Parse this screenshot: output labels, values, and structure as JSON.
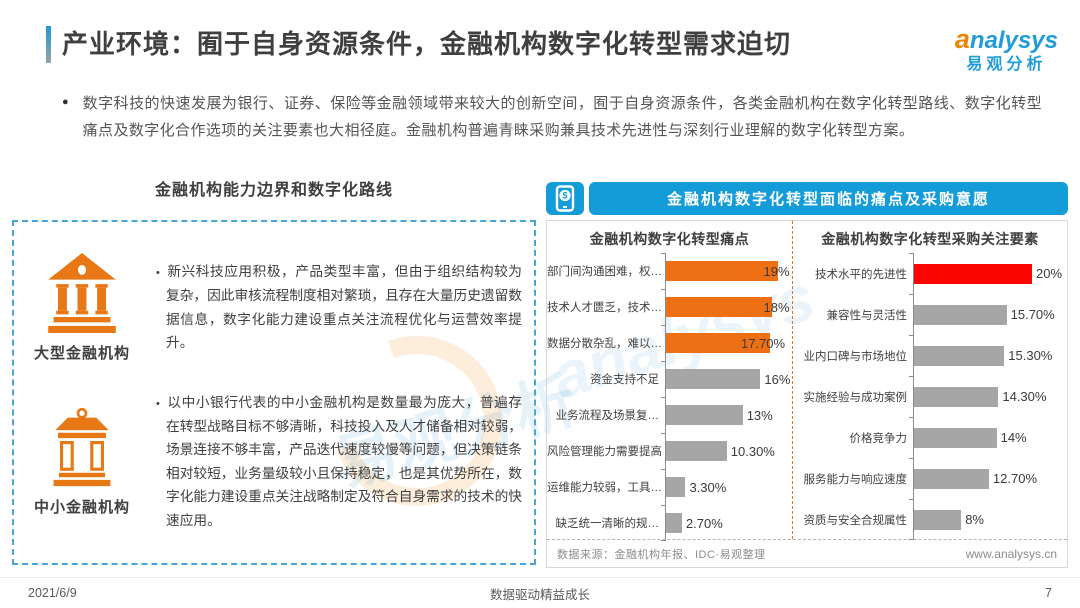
{
  "page": {
    "title": "产业环境：囿于自身资源条件，金融机构数字化转型需求迫切",
    "logo": {
      "first": "a",
      "rest": "nalysys",
      "cn": "易观分析"
    },
    "intro": "数字科技的快速发展为银行、证券、保险等金融领域带来较大的创新空间，囿于自身资源条件，各类金融机构在数字化转型路线、数字化转型痛点及数字化合作选项的关注要素也大相径庭。金融机构普遍青睐采购兼具技术先进性与深刻行业理解的数字化转型方案。",
    "footer": {
      "date": "2021/6/9",
      "center": "数据驱动精益成长",
      "page": "7"
    },
    "watermarks": {
      "left": "易观分析",
      "right": "analysys"
    }
  },
  "left_panel": {
    "title": "金融机构能力边界和数字化路线",
    "items": [
      {
        "icon": "bank-large-icon",
        "label": "大型金融机构",
        "text": "新兴科技应用积极，产品类型丰富，但由于组织结构较为复杂，因此审核流程制度相对繁琐，且存在大量历史遗留数据信息，数字化能力建设重点关注流程优化与运营效率提升。"
      },
      {
        "icon": "bank-small-icon",
        "label": "中小金融机构",
        "text": "以中小银行代表的中小金融机构是数量最为庞大，普遍存在转型战略目标不够清晰，科技投入及人才储备相对较弱，场景连接不够丰富，产品迭代速度较慢等问题，但决策链条相对较短，业务量级较小且保持稳定，也是其优势所在，数字化能力建设重点关注战略制定及符合自身需求的技术的快速应用。"
      }
    ]
  },
  "right_panel": {
    "header": "金融机构数字化转型面临的痛点及采购意愿",
    "source": "数据来源：金融机构年报、IDC·易观整理",
    "website": "www.analysys.cn"
  },
  "colors": {
    "accent_blue": "#149cd8",
    "orange": "#ed7014",
    "red": "#fb0500",
    "gray_bar": "#a6a6a6"
  },
  "chart_data": [
    {
      "type": "bar",
      "orientation": "horizontal",
      "title": "金融机构数字化转型痛点",
      "categories": [
        "部门间沟通困难，权…",
        "技术人才匮乏，技术…",
        "数据分散杂乱，难以…",
        "资金支持不足",
        "业务流程及场景复…",
        "风险管理能力需要提高",
        "运维能力较弱，工具…",
        "缺乏统一清晰的规…"
      ],
      "values": [
        19,
        18,
        17.7,
        16,
        13,
        10.3,
        3.3,
        2.7
      ],
      "labels": [
        "19%",
        "18%",
        "17.70%",
        "16%",
        "13%",
        "10.30%",
        "3.30%",
        "2.70%"
      ],
      "bar_colors": [
        "#ed7014",
        "#ed7014",
        "#ed7014",
        "#a6a6a6",
        "#a6a6a6",
        "#a6a6a6",
        "#a6a6a6",
        "#a6a6a6"
      ],
      "xlim": [
        0,
        21
      ],
      "xlabel": "",
      "ylabel": "",
      "grid": false,
      "legend": "none"
    },
    {
      "type": "bar",
      "orientation": "horizontal",
      "title": "金融机构数字化转型采购关注要素",
      "categories": [
        "技术水平的先进性",
        "兼容性与灵活性",
        "业内口碑与市场地位",
        "实施经验与成功案例",
        "价格竞争力",
        "服务能力与响应速度",
        "资质与安全合规属性"
      ],
      "values": [
        20,
        15.7,
        15.3,
        14.3,
        14,
        12.7,
        8
      ],
      "labels": [
        "20%",
        "15.70%",
        "15.30%",
        "14.30%",
        "14%",
        "12.70%",
        "8%"
      ],
      "bar_colors": [
        "#fb0500",
        "#a6a6a6",
        "#a6a6a6",
        "#a6a6a6",
        "#a6a6a6",
        "#a6a6a6",
        "#a6a6a6"
      ],
      "xlim": [
        0,
        23
      ],
      "xlabel": "",
      "ylabel": "",
      "grid": false,
      "legend": "none"
    }
  ]
}
